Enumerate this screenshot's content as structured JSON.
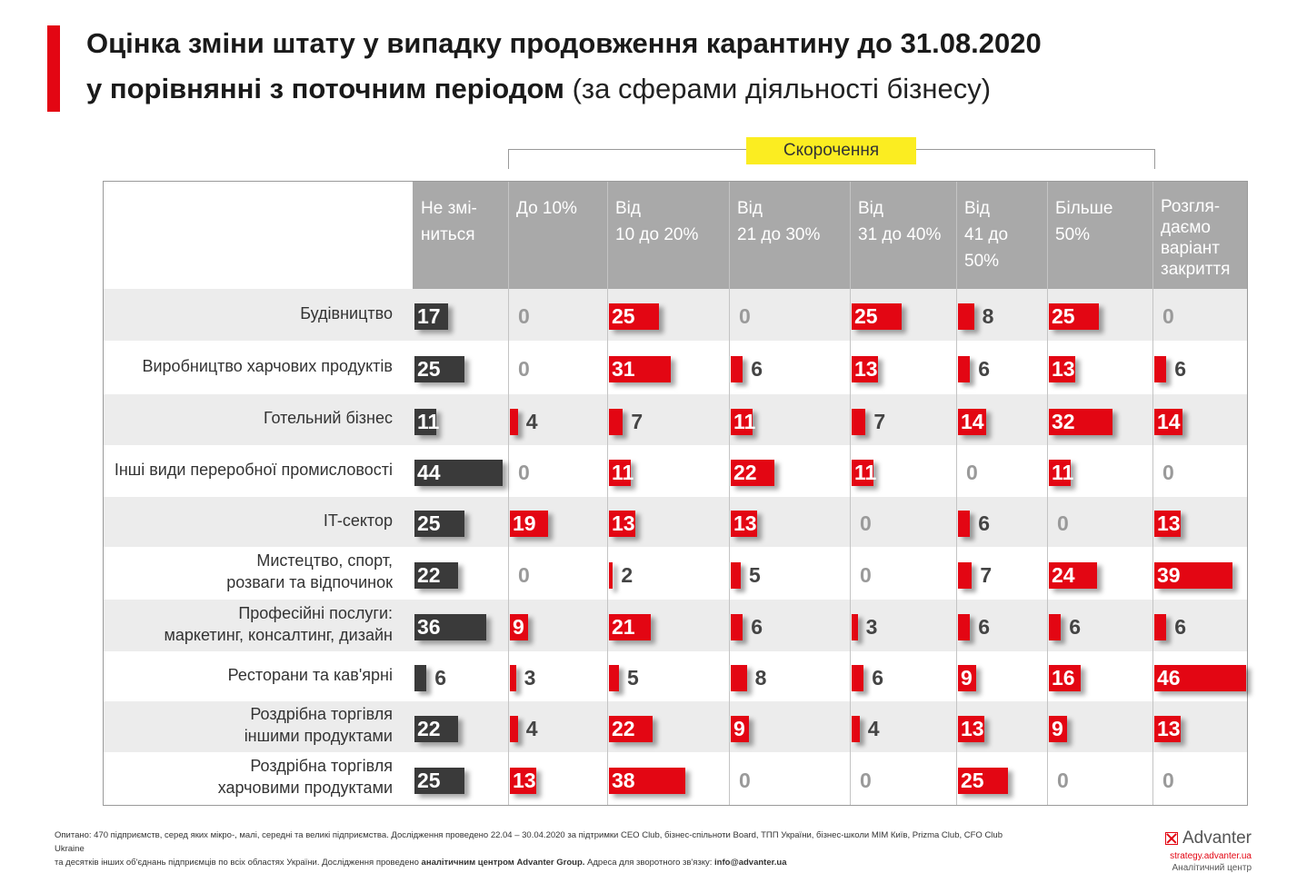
{
  "title_line1": "Оцінка зміни штату у випадку продовження карантину до 31.08.2020",
  "title_line2_bold": "у порівнянні з поточним періодом",
  "title_line2_light": "(за сферами діяльності бізнесу)",
  "group_label": "Скорочення",
  "colors": {
    "accent": "#e30613",
    "dark": "#3a3a3a",
    "highlight": "#fbed21",
    "header": "#a9a9a9"
  },
  "chart_data": {
    "type": "bar",
    "unit": "%",
    "columns": [
      [
        "Не змі-",
        "ниться"
      ],
      [
        "До 10%"
      ],
      [
        "Від",
        "10 до 20%"
      ],
      [
        "Від",
        "21 до 30%"
      ],
      [
        "Від",
        "31 до 40%"
      ],
      [
        "Від",
        "41 до 50%"
      ],
      [
        "Більше",
        "50%"
      ],
      [
        "Розгля-",
        "даємо",
        "варіант",
        "закриття"
      ]
    ],
    "categories": [
      [
        "Будівництво"
      ],
      [
        "Виробництво харчових продуктів"
      ],
      [
        "Готельний бізнес"
      ],
      [
        "Інші види переробної промисловості"
      ],
      [
        "IT-сектор"
      ],
      [
        "Мистецтво, спорт,",
        "розваги та відпочинок"
      ],
      [
        "Професійні послуги:",
        "маркетинг, консалтинг, дизайн"
      ],
      [
        "Ресторани та кав'ярні"
      ],
      [
        "Роздрібна торгівля",
        "іншими продуктами"
      ],
      [
        "Роздрібна торгівля",
        "харчовими продуктами"
      ]
    ],
    "values": [
      [
        17,
        0,
        25,
        0,
        25,
        8,
        25,
        0
      ],
      [
        25,
        0,
        31,
        6,
        13,
        6,
        13,
        6
      ],
      [
        11,
        4,
        7,
        11,
        7,
        14,
        32,
        14
      ],
      [
        44,
        0,
        11,
        22,
        11,
        0,
        11,
        0
      ],
      [
        25,
        19,
        13,
        13,
        0,
        6,
        0,
        13
      ],
      [
        22,
        0,
        2,
        5,
        0,
        7,
        24,
        39
      ],
      [
        36,
        9,
        21,
        6,
        3,
        6,
        6,
        6
      ],
      [
        6,
        3,
        5,
        8,
        6,
        9,
        16,
        46
      ],
      [
        22,
        4,
        22,
        9,
        4,
        13,
        9,
        13
      ],
      [
        25,
        13,
        38,
        0,
        0,
        25,
        0,
        0
      ]
    ]
  },
  "footnote": {
    "line1": "Опитано: 470 підприємств, серед яких мікро-, малі, середні та великі підприємства. Дослідження проведено 22.04 – 30.04.2020 за підтримки CEO Club, бізнес-спільноти Board, ТПП України, бізнес-школи MIM Київ, Prizma Club, CFO Club Ukraine",
    "line2_a": "та десятків інших об'єднань підприємців по всіх областях України. Дослідження проведено",
    "line2_b": "аналітичним центром Advanter Group.",
    "line2_c": "Адреса для зворотного зв'язку:",
    "line2_d": "info@advanter.ua"
  },
  "logo": {
    "name": "Advanter",
    "url": "strategy.advanter.ua",
    "subtitle": "Аналітичний центр"
  }
}
